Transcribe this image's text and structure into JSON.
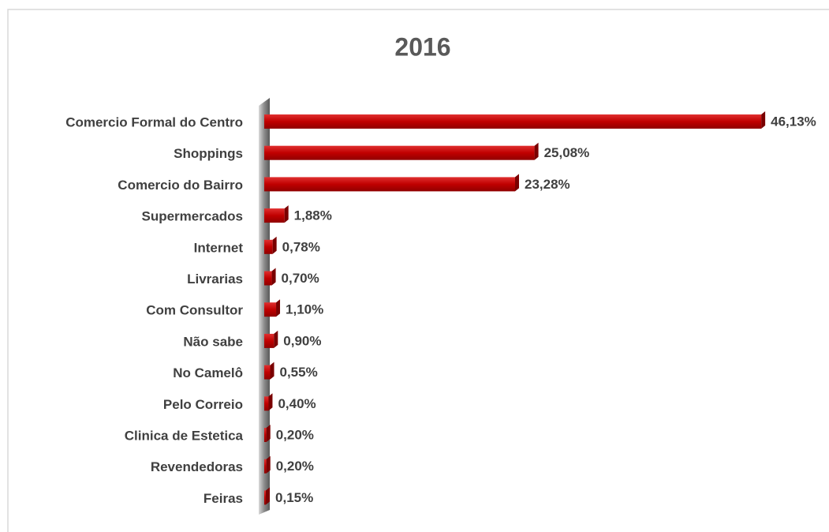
{
  "chart_data": {
    "type": "bar",
    "orientation": "horizontal",
    "title": "2016",
    "categories": [
      "Comercio Formal do Centro",
      "Shoppings",
      "Comercio  do Bairro",
      "Supermercados",
      "Internet",
      "Livrarias",
      "Com Consultor",
      "Não sabe",
      "No Camelô",
      "Pelo Correio",
      "Clinica de Estetica",
      "Revendedoras",
      "Feiras"
    ],
    "values": [
      46.13,
      25.08,
      23.28,
      1.88,
      0.78,
      0.7,
      1.1,
      0.9,
      0.55,
      0.4,
      0.2,
      0.2,
      0.15
    ],
    "value_labels": [
      "46,13%",
      "25,08%",
      "23,28%",
      "1,88%",
      "0,78%",
      "0,70%",
      "1,10%",
      "0,90%",
      "0,55%",
      "0,40%",
      "0,20%",
      "0,20%",
      "0,15%"
    ],
    "color": "#c00000"
  }
}
